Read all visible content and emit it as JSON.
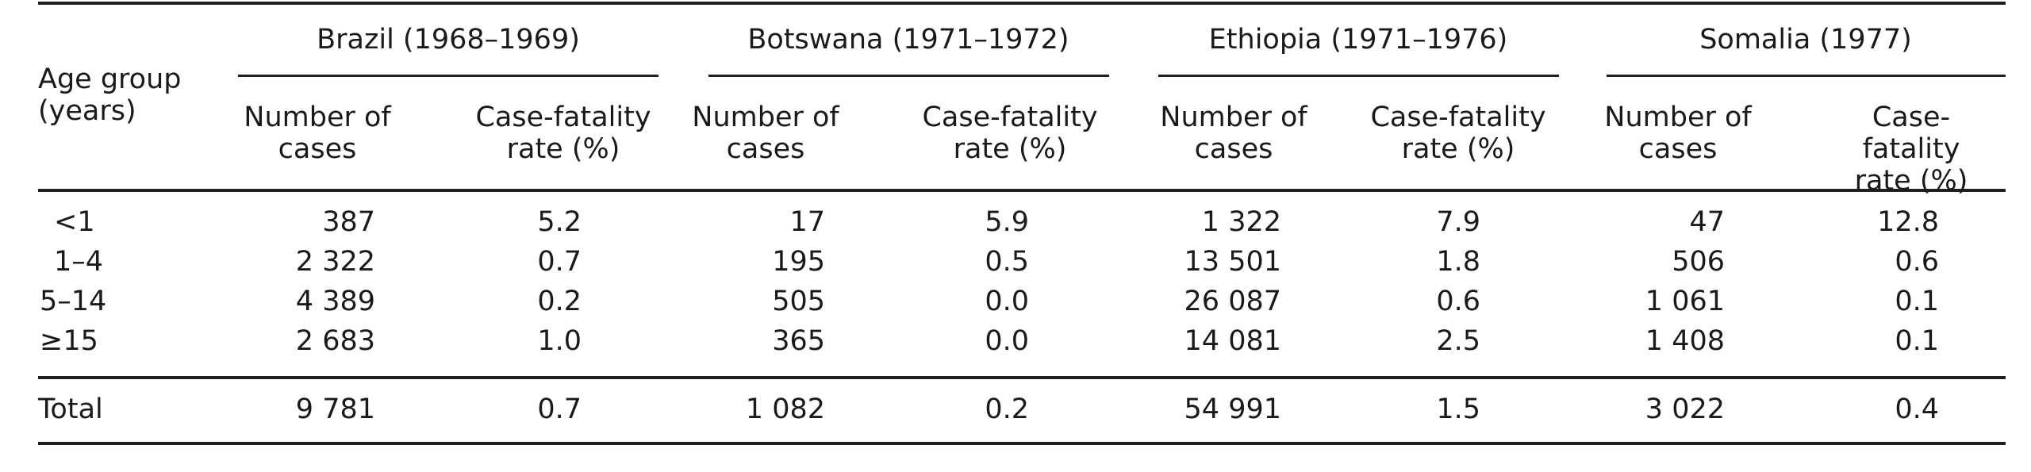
{
  "table": {
    "stub_header": [
      "Age group",
      "(years)"
    ],
    "countries": [
      "Brazil (1968–1969)",
      "Botswana (1971–1972)",
      "Ethiopia (1971–1976)",
      "Somalia (1977)"
    ],
    "sub_headers": {
      "cases": [
        "Number of",
        "cases"
      ],
      "cfr": [
        "Case-fatality",
        "rate (%)"
      ]
    },
    "rows": [
      {
        "age": "<1",
        "values": [
          "387",
          "5.2",
          "17",
          "5.9",
          "1 322",
          "7.9",
          "47",
          "12.8"
        ]
      },
      {
        "age": "1–4",
        "values": [
          "2 322",
          "0.7",
          "195",
          "0.5",
          "13 501",
          "1.8",
          "506",
          "0.6"
        ]
      },
      {
        "age": "5–14",
        "values": [
          "4 389",
          "0.2",
          "505",
          "0.0",
          "26 087",
          "0.6",
          "1 061",
          "0.1"
        ]
      },
      {
        "age": "≥15",
        "values": [
          "2 683",
          "1.0",
          "365",
          "0.0",
          "14 081",
          "2.5",
          "1 408",
          "0.1"
        ]
      }
    ],
    "total": {
      "age": "Total",
      "values": [
        "9 781",
        "0.7",
        "1 082",
        "0.2",
        "54 991",
        "1.5",
        "3 022",
        "0.4"
      ]
    }
  }
}
